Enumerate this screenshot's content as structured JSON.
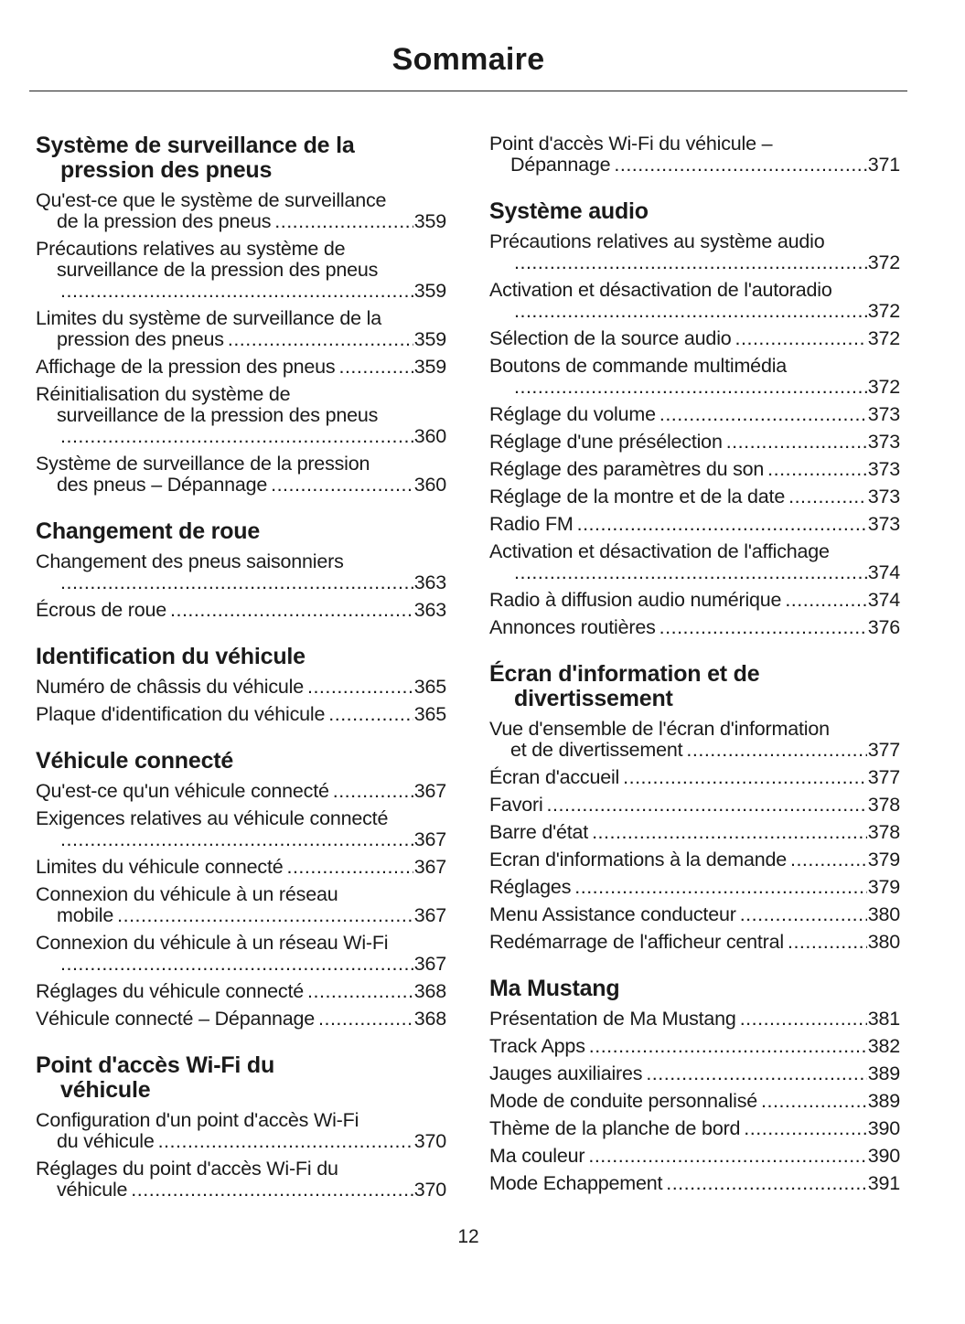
{
  "title": "Sommaire",
  "page_number": "12",
  "columns": [
    {
      "sections": [
        {
          "heading": [
            "Système de surveillance de la",
            "pression des pneus"
          ],
          "entries": [
            {
              "lines": [
                "Qu'est-ce que le système de surveillance",
                "de la pression des pneus"
              ],
              "page": "359"
            },
            {
              "lines": [
                "Précautions relatives au système de",
                "surveillance de la pression des pneus",
                ""
              ],
              "page": "359"
            },
            {
              "lines": [
                "Limites du système de surveillance de la",
                "pression des pneus"
              ],
              "page": "359"
            },
            {
              "lines": [
                "Affichage de la pression des pneus"
              ],
              "page": "359"
            },
            {
              "lines": [
                "Réinitialisation du système de",
                "surveillance de la pression des pneus",
                ""
              ],
              "page": "360"
            },
            {
              "lines": [
                "Système de surveillance de la pression",
                "des pneus – Dépannage"
              ],
              "page": "360"
            }
          ]
        },
        {
          "heading": [
            "Changement de roue"
          ],
          "entries": [
            {
              "lines": [
                "Changement des pneus saisonniers",
                ""
              ],
              "page": "363"
            },
            {
              "lines": [
                "Écrous de roue"
              ],
              "page": "363"
            }
          ]
        },
        {
          "heading": [
            "Identification du véhicule"
          ],
          "entries": [
            {
              "lines": [
                "Numéro de châssis du véhicule"
              ],
              "page": "365"
            },
            {
              "lines": [
                "Plaque d'identification du véhicule"
              ],
              "page": "365"
            }
          ]
        },
        {
          "heading": [
            "Véhicule connecté"
          ],
          "entries": [
            {
              "lines": [
                "Qu'est-ce qu'un véhicule connecté"
              ],
              "page": "367"
            },
            {
              "lines": [
                "Exigences relatives au véhicule connecté",
                ""
              ],
              "page": "367"
            },
            {
              "lines": [
                "Limites du véhicule connecté"
              ],
              "page": "367"
            },
            {
              "lines": [
                "Connexion du véhicule à un réseau",
                "mobile"
              ],
              "page": "367"
            },
            {
              "lines": [
                "Connexion du véhicule à un réseau Wi-Fi",
                ""
              ],
              "page": "367"
            },
            {
              "lines": [
                "Réglages du véhicule connecté"
              ],
              "page": "368"
            },
            {
              "lines": [
                "Véhicule connecté – Dépannage"
              ],
              "page": "368"
            }
          ]
        },
        {
          "heading": [
            "Point d'accès Wi-Fi du",
            "véhicule"
          ],
          "entries": [
            {
              "lines": [
                "Configuration d'un point d'accès Wi-Fi",
                "du véhicule"
              ],
              "page": "370"
            },
            {
              "lines": [
                "Réglages du point d'accès Wi-Fi du",
                "véhicule"
              ],
              "page": "370"
            }
          ]
        }
      ]
    },
    {
      "sections": [
        {
          "heading": [],
          "entries": [
            {
              "lines": [
                "Point d'accès Wi-Fi du véhicule –",
                "Dépannage"
              ],
              "page": "371"
            }
          ]
        },
        {
          "heading": [
            "Système audio"
          ],
          "entries": [
            {
              "lines": [
                "Précautions relatives au système audio",
                ""
              ],
              "page": "372"
            },
            {
              "lines": [
                "Activation et désactivation de l'autoradio",
                ""
              ],
              "page": "372"
            },
            {
              "lines": [
                "Sélection de la source audio"
              ],
              "page": "372"
            },
            {
              "lines": [
                "Boutons de commande multimédia",
                ""
              ],
              "page": "372"
            },
            {
              "lines": [
                "Réglage du volume"
              ],
              "page": "373"
            },
            {
              "lines": [
                "Réglage d'une présélection"
              ],
              "page": "373"
            },
            {
              "lines": [
                "Réglage des paramètres du son"
              ],
              "page": "373"
            },
            {
              "lines": [
                "Réglage de la montre et de la date"
              ],
              "page": "373"
            },
            {
              "lines": [
                "Radio FM"
              ],
              "page": "373"
            },
            {
              "lines": [
                "Activation et désactivation de l'affichage",
                ""
              ],
              "page": "374"
            },
            {
              "lines": [
                "Radio à diffusion audio numérique"
              ],
              "page": "374"
            },
            {
              "lines": [
                "Annonces routières"
              ],
              "page": "376"
            }
          ]
        },
        {
          "heading": [
            "Écran d'information et de",
            "divertissement"
          ],
          "entries": [
            {
              "lines": [
                "Vue d'ensemble de l'écran d'information",
                "et de divertissement"
              ],
              "page": "377"
            },
            {
              "lines": [
                "Écran d'accueil"
              ],
              "page": "377"
            },
            {
              "lines": [
                "Favori"
              ],
              "page": "378"
            },
            {
              "lines": [
                "Barre d'état"
              ],
              "page": "378"
            },
            {
              "lines": [
                "Ecran d'informations à la demande"
              ],
              "page": "379"
            },
            {
              "lines": [
                "Réglages"
              ],
              "page": "379"
            },
            {
              "lines": [
                "Menu Assistance conducteur"
              ],
              "page": "380"
            },
            {
              "lines": [
                "Redémarrage de l'afficheur central"
              ],
              "page": "380"
            }
          ]
        },
        {
          "heading": [
            "Ma Mustang"
          ],
          "entries": [
            {
              "lines": [
                "Présentation de Ma Mustang"
              ],
              "page": "381"
            },
            {
              "lines": [
                "Track Apps"
              ],
              "page": "382"
            },
            {
              "lines": [
                "Jauges auxiliaires"
              ],
              "page": "389"
            },
            {
              "lines": [
                "Mode de conduite personnalisé"
              ],
              "page": "389"
            },
            {
              "lines": [
                "Thème de la planche de bord"
              ],
              "page": "390"
            },
            {
              "lines": [
                "Ma couleur"
              ],
              "page": "390"
            },
            {
              "lines": [
                "Mode Echappement"
              ],
              "page": "391"
            }
          ]
        }
      ]
    }
  ]
}
